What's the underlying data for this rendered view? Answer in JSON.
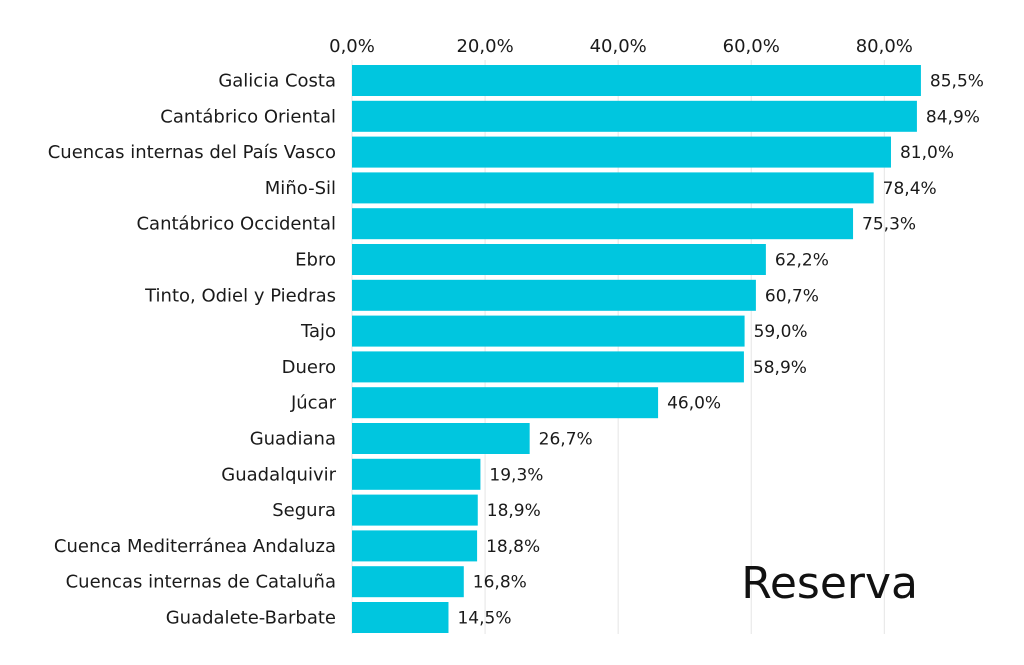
{
  "chart_data": {
    "type": "bar",
    "orientation": "horizontal",
    "title": "Reserva",
    "categories": [
      "Galicia Costa",
      "Cantábrico Oriental",
      "Cuencas internas del País Vasco",
      "Miño-Sil",
      "Cantábrico Occidental",
      "Ebro",
      "Tinto, Odiel y Piedras",
      "Tajo",
      "Duero",
      "Júcar",
      "Guadiana",
      "Guadalquivir",
      "Segura",
      "Cuenca Mediterránea Andaluza",
      "Cuencas internas de Cataluña",
      "Guadalete-Barbate"
    ],
    "values": [
      85.5,
      84.9,
      81.0,
      78.4,
      75.3,
      62.2,
      60.7,
      59.0,
      58.9,
      46.0,
      26.7,
      19.3,
      18.9,
      18.8,
      16.8,
      14.5
    ],
    "value_labels": [
      "85,5%",
      "84,9%",
      "81,0%",
      "78,4%",
      "75,3%",
      "62,2%",
      "60,7%",
      "59,0%",
      "58,9%",
      "46,0%",
      "26,7%",
      "19,3%",
      "18,9%",
      "18,8%",
      "16,8%",
      "14,5%"
    ],
    "x_ticks": [
      0,
      20,
      40,
      60,
      80
    ],
    "x_tick_labels": [
      "0,0%",
      "20,0%",
      "40,0%",
      "60,0%",
      "80,0%"
    ],
    "xlim": [
      0,
      90
    ],
    "axis_position": "top",
    "grid": true,
    "bar_color": "#00c6df",
    "legend": "none"
  }
}
